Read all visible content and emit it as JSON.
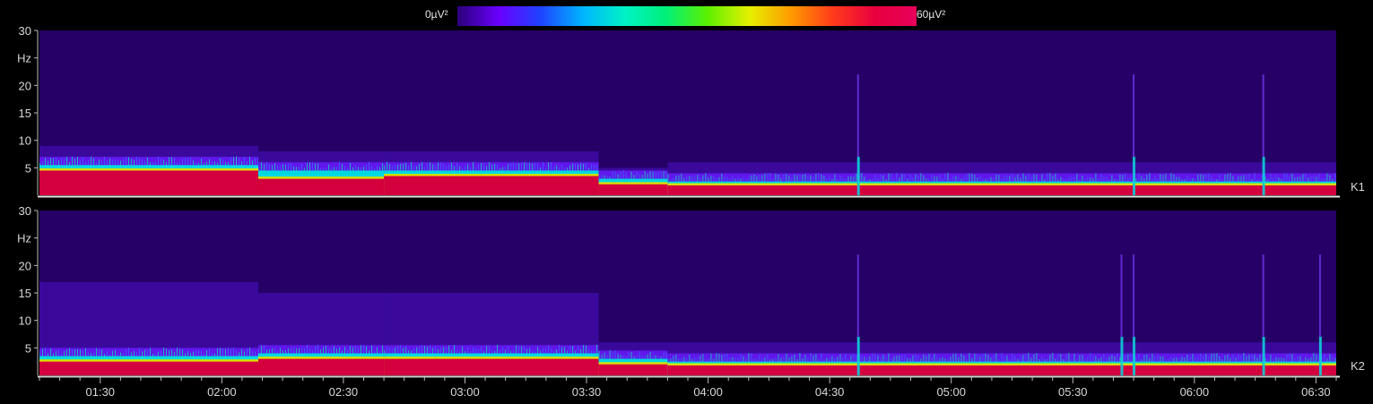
{
  "colorbar": {
    "min_label": "0µV²",
    "max_label": "60µV²",
    "colors": [
      "#2b007a",
      "#6a00ff",
      "#1f44ff",
      "#00b4ff",
      "#00f2c6",
      "#00f07a",
      "#5cf000",
      "#e6f000",
      "#ff9a00",
      "#ff3a1a",
      "#e8003f",
      "#e8005a"
    ]
  },
  "chart_data": {
    "type": "heatmap",
    "title": "",
    "xlabel": "",
    "ylabel": "Hz",
    "value_units": "µV²",
    "value_range": [
      0,
      60
    ],
    "y_range": [
      0,
      30
    ],
    "y_ticks": [
      5,
      10,
      15,
      20,
      30
    ],
    "y_tick_labels": [
      "5",
      "10",
      "15",
      "20",
      "Hz",
      "30"
    ],
    "x_range": [
      "01:15",
      "06:35"
    ],
    "x_ticks": [
      "01:30",
      "02:00",
      "02:30",
      "03:00",
      "03:30",
      "04:00",
      "04:30",
      "05:00",
      "05:30",
      "06:00",
      "06:30"
    ],
    "channels": [
      {
        "name": "K1",
        "segments": [
          {
            "start": "01:15",
            "end": "02:09",
            "red_top_hz": 4.5,
            "cyan_top_hz": 5.5,
            "purple_top_hz": 9
          },
          {
            "start": "02:09",
            "end": "02:40",
            "red_top_hz": 3,
            "cyan_top_hz": 4.5,
            "purple_top_hz": 8
          },
          {
            "start": "02:40",
            "end": "03:33",
            "red_top_hz": 3.5,
            "cyan_top_hz": 4.5,
            "purple_top_hz": 8
          },
          {
            "start": "03:33",
            "end": "03:50",
            "red_top_hz": 2,
            "cyan_top_hz": 3,
            "purple_top_hz": 5
          },
          {
            "start": "03:50",
            "end": "06:35",
            "red_top_hz": 1.8,
            "cyan_top_hz": 2.5,
            "purple_top_hz": 6
          }
        ],
        "spikes": [
          "04:37",
          "05:45",
          "06:17"
        ]
      },
      {
        "name": "K2",
        "segments": [
          {
            "start": "01:15",
            "end": "02:09",
            "red_top_hz": 2.5,
            "cyan_top_hz": 3.5,
            "purple_top_hz": 17
          },
          {
            "start": "02:09",
            "end": "02:40",
            "red_top_hz": 3,
            "cyan_top_hz": 4,
            "purple_top_hz": 15
          },
          {
            "start": "02:40",
            "end": "03:33",
            "red_top_hz": 3,
            "cyan_top_hz": 4,
            "purple_top_hz": 15
          },
          {
            "start": "03:33",
            "end": "03:50",
            "red_top_hz": 2,
            "cyan_top_hz": 3,
            "purple_top_hz": 6
          },
          {
            "start": "03:50",
            "end": "06:35",
            "red_top_hz": 1.8,
            "cyan_top_hz": 2.5,
            "purple_top_hz": 6
          }
        ],
        "spikes": [
          "04:37",
          "05:42",
          "05:45",
          "06:17",
          "06:31"
        ]
      }
    ]
  }
}
